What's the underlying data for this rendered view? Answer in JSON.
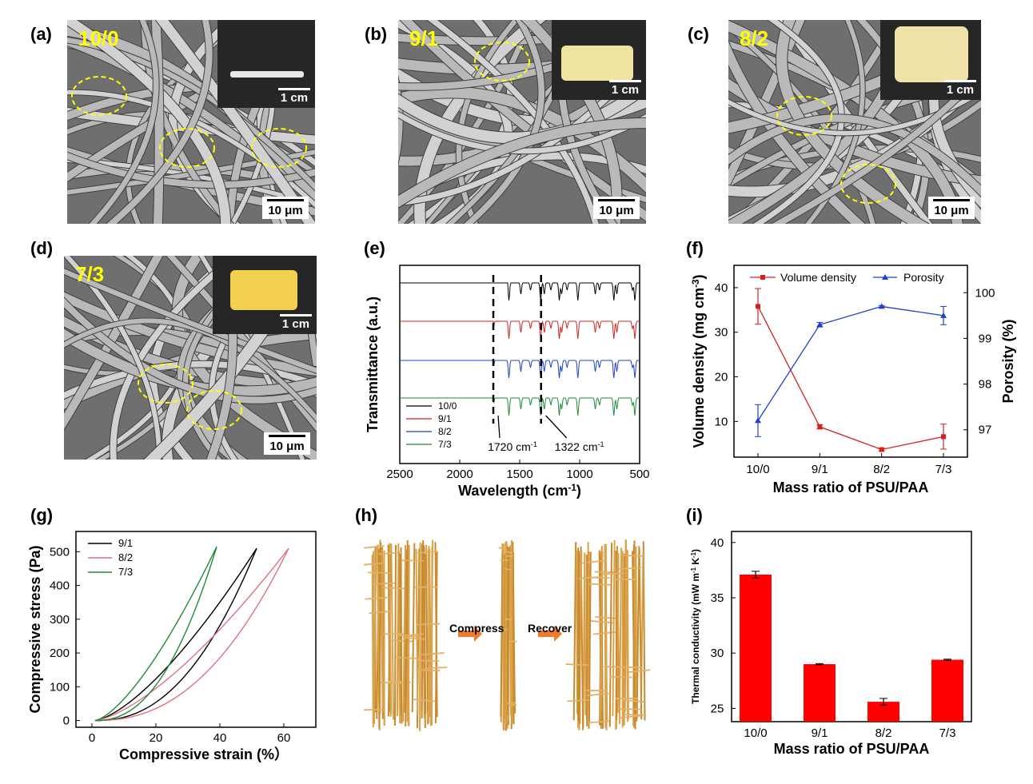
{
  "panels": {
    "a": {
      "label": "(a)",
      "ratio": "10/0",
      "inset_scale": "1 cm",
      "scale": "10 μm"
    },
    "b": {
      "label": "(b)",
      "ratio": "9/1",
      "inset_scale": "1 cm",
      "scale": "10 μm"
    },
    "c": {
      "label": "(c)",
      "ratio": "8/2",
      "inset_scale": "1 cm",
      "scale": "10 μm"
    },
    "d": {
      "label": "(d)",
      "ratio": "7/3",
      "inset_scale": "1 cm",
      "scale": "10 μm"
    },
    "e": {
      "label": "(e)"
    },
    "f": {
      "label": "(f)"
    },
    "g": {
      "label": "(g)"
    },
    "h": {
      "label": "(h)",
      "compress": "Compress",
      "recover": "Recover"
    },
    "i": {
      "label": "(i)"
    }
  },
  "colors": {
    "black": "#000000",
    "red": "#d62020",
    "blue": "#1f3fd0",
    "green": "#1e8a3a",
    "pink": "#e07080",
    "bar_red": "#ff0000",
    "ellipse": "#ffff00",
    "arrow_orange": "#f07a2a"
  },
  "chart_data": [
    {
      "panel": "e",
      "type": "line",
      "xlabel": "Wavelength (cm",
      "xlabel_sup": "-1",
      "xlabel_end": ")",
      "ylabel": "Transmittance (a.u.)",
      "xlim": [
        2500,
        500
      ],
      "xticks": [
        "2500",
        "2000",
        "1500",
        "1000",
        "500"
      ],
      "legend": [
        "10/0",
        "9/1",
        "8/2",
        "7/3"
      ],
      "annotations": [
        {
          "text": "1720 cm",
          "sup": "-1",
          "x": 1720
        },
        {
          "text": "1322 cm",
          "sup": "-1",
          "x": 1322
        }
      ],
      "series": [
        {
          "name": "10/0",
          "offset": 3,
          "onset": 1600
        },
        {
          "name": "9/1",
          "offset": 2,
          "onset": 1720
        },
        {
          "name": "8/2",
          "offset": 1,
          "onset": 1720
        },
        {
          "name": "7/3",
          "offset": 0,
          "onset": 1720
        }
      ]
    },
    {
      "panel": "f",
      "type": "line",
      "categories": [
        "10/0",
        "9/1",
        "8/2",
        "7/3"
      ],
      "xlabel": "Mass ratio of PSU/PAA",
      "ylabel_left": "Volume density (mg cm",
      "ylabel_left_sup": "-3",
      "ylabel_left_end": ")",
      "ylabel_right": "Porosity (%)",
      "ylim_left": [
        2,
        45
      ],
      "yticks_left": [
        10,
        20,
        30,
        40
      ],
      "ylim_right": [
        96.4,
        100.6
      ],
      "yticks_right": [
        97,
        98,
        99,
        100
      ],
      "legend": [
        "Volume density",
        "Porosity"
      ],
      "series": [
        {
          "name": "Volume density",
          "axis": "left",
          "values": [
            35.8,
            8.8,
            3.7,
            6.6
          ],
          "errors": [
            4.0,
            0.5,
            0.3,
            2.8
          ]
        },
        {
          "name": "Porosity",
          "axis": "right",
          "values": [
            97.2,
            99.3,
            99.7,
            99.5
          ],
          "errors": [
            0.35,
            0.05,
            0.02,
            0.2
          ]
        }
      ]
    },
    {
      "panel": "g",
      "type": "line",
      "xlabel": "Compressive strain (%）",
      "ylabel": "Compressive stress (Pa)",
      "xlim": [
        -5,
        70
      ],
      "xticks": [
        0,
        20,
        40,
        60
      ],
      "ylim": [
        -20,
        560
      ],
      "yticks": [
        0,
        100,
        200,
        300,
        400,
        500
      ],
      "legend": [
        "9/1",
        "8/2",
        "7/3"
      ],
      "series": [
        {
          "name": "9/1",
          "max_strain": 51.5,
          "max_stress": 510
        },
        {
          "name": "8/2",
          "max_strain": 61.5,
          "max_stress": 510
        },
        {
          "name": "7/3",
          "max_strain": 39,
          "max_stress": 515
        }
      ]
    },
    {
      "panel": "i",
      "type": "bar",
      "categories": [
        "10/0",
        "9/1",
        "8/2",
        "7/3"
      ],
      "values": [
        37.1,
        29.0,
        25.6,
        29.4
      ],
      "errors": [
        0.3,
        0.05,
        0.3,
        0.05
      ],
      "xlabel": "Mass ratio of PSU/PAA",
      "ylabel": "Thermal conductivity (mW m",
      "ylabel_sup1": "-1",
      "ylabel_mid": " K",
      "ylabel_sup2": "-1",
      "ylabel_end": ")",
      "ylim": [
        23.8,
        41
      ],
      "yticks": [
        25,
        30,
        35,
        40
      ]
    }
  ]
}
